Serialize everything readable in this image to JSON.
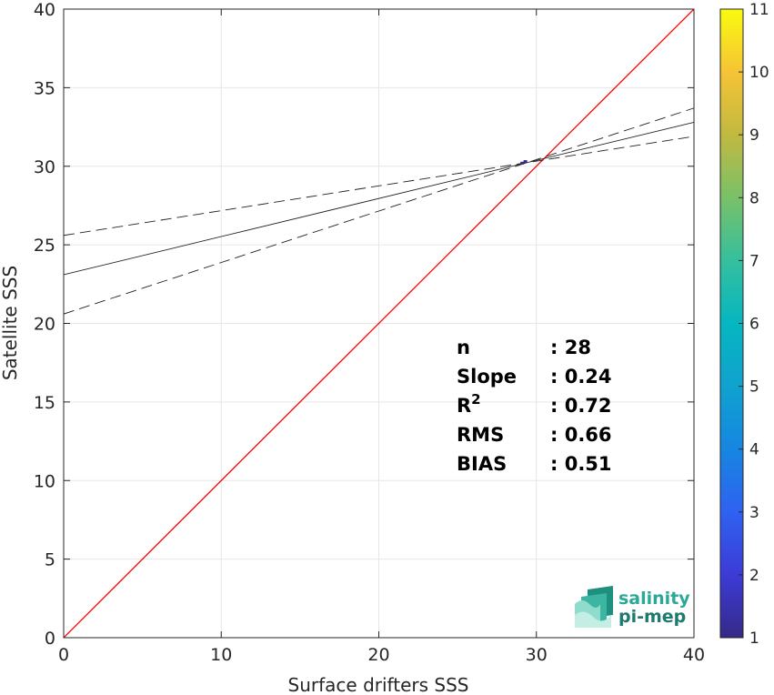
{
  "chart_data": {
    "type": "scatter",
    "title": "",
    "xlabel": "Surface drifters SSS",
    "ylabel": "Satellite SSS",
    "xlim": [
      0,
      40
    ],
    "ylim": [
      0,
      40
    ],
    "xticks": [
      0,
      10,
      20,
      30,
      40
    ],
    "yticks": [
      0,
      5,
      10,
      15,
      20,
      25,
      30,
      35,
      40
    ],
    "grid": true,
    "points": [
      {
        "x": 29.1,
        "y": 30.2,
        "count": 1
      },
      {
        "x": 29.3,
        "y": 30.3,
        "count": 1
      }
    ],
    "identity_line": {
      "from": [
        0,
        0
      ],
      "to": [
        40,
        40
      ],
      "color": "#ff0000"
    },
    "regression_line": {
      "intercept": 23.1,
      "end_y": 32.8
    },
    "confidence_lower": {
      "y_at_0": 20.6,
      "y_at_40": 33.7
    },
    "confidence_upper": {
      "y_at_0": 25.6,
      "y_at_40": 31.9
    },
    "stats": [
      {
        "key": "n",
        "sep": ":",
        "value": "28"
      },
      {
        "key": "Slope",
        "sep": ":",
        "value": "0.24"
      },
      {
        "key": "R",
        "sup": "2",
        "sep": ":",
        "value": "0.72"
      },
      {
        "key": "RMS",
        "sep": ":",
        "value": "0.66"
      },
      {
        "key": "BIAS",
        "sep": ":",
        "value": "0.51"
      }
    ],
    "colorbar": {
      "min": 1,
      "max": 11,
      "ticks": [
        "1",
        "2",
        "3",
        "4",
        "5",
        "6",
        "7",
        "8",
        "9",
        "10",
        "11"
      ],
      "colormap": "parula"
    }
  },
  "logo": {
    "line1": "salinity",
    "line2": "pi-mep"
  }
}
